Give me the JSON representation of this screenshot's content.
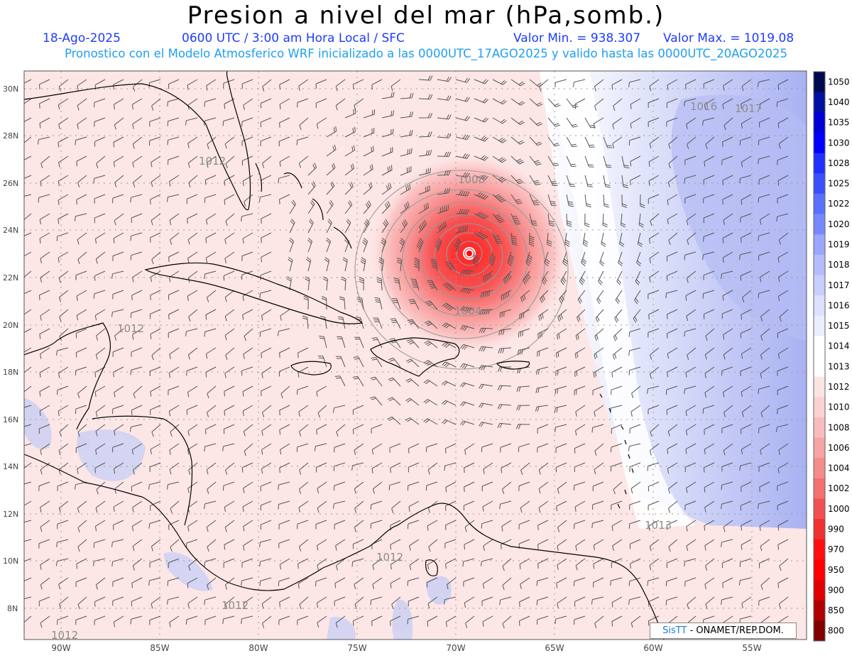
{
  "title": "Presion a nivel del mar (hPa,somb.)",
  "header": {
    "date": "18-Ago-2025",
    "time": "0600 UTC / 3:00 am Hora Local / SFC",
    "min_label": "Valor Min. = 938.307",
    "max_label": "Valor Max. = 1019.08",
    "forecast_line": "Pronostico con el Modelo Atmosferico WRF inicializado a las 0000UTC_17AGO2025 y valido hasta las  0000UTC_20AGO2025"
  },
  "axes": {
    "lat_labels": [
      "30N",
      "28N",
      "26N",
      "24N",
      "22N",
      "20N",
      "18N",
      "16N",
      "14N",
      "12N",
      "10N",
      "8N"
    ],
    "lon_labels": [
      "90W",
      "85W",
      "80W",
      "75W",
      "70W",
      "65W",
      "60W",
      "55W"
    ]
  },
  "isobar_labels": [
    "1012",
    "1012",
    "1012",
    "1012",
    "1012",
    "1008",
    "1004",
    "1016",
    "1017",
    "1013"
  ],
  "colorbar": {
    "labels": [
      "1050",
      "1040",
      "1035",
      "1030",
      "1028",
      "1025",
      "1022",
      "1020",
      "1019",
      "1018",
      "1017",
      "1016",
      "1015",
      "1014",
      "1013",
      "1012",
      "1010",
      "1008",
      "1006",
      "1004",
      "1002",
      "1000",
      "990",
      "970",
      "950",
      "900",
      "850",
      "800"
    ],
    "colors": [
      "#000a50",
      "#0010a0",
      "#0000d8",
      "#0000ff",
      "#1f30ff",
      "#3a50ff",
      "#5a70ff",
      "#7888ff",
      "#9aa6ff",
      "#b4bcff",
      "#c8ceff",
      "#dde0ff",
      "#eceefd",
      "#ffffff",
      "#ffffff",
      "#fde4e4",
      "#fbd2d2",
      "#f9bcbc",
      "#f7a4a4",
      "#f48c8c",
      "#f27070",
      "#f05050",
      "#f03030",
      "#ff1010",
      "#ff0000",
      "#e00000",
      "#b00000",
      "#800000"
    ]
  },
  "storm": {
    "center_lat": 23.0,
    "center_lon": -69.3,
    "min_pressure": 938.307
  },
  "credit": {
    "brand": "SisTT",
    "text": "- ONAMET/REP.DOM."
  }
}
